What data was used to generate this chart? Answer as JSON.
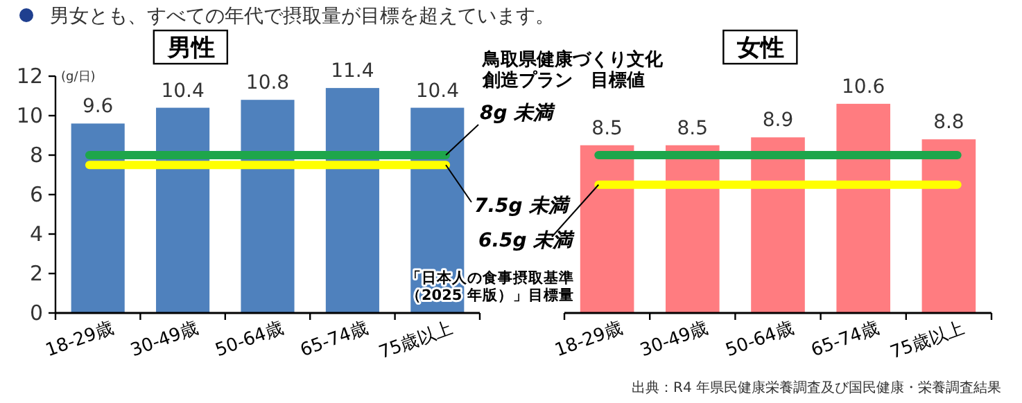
{
  "chart_data": [
    {
      "type": "bar",
      "title": "男女とも、すべての年代で摂取量が目標を超えています。",
      "subtitle": "男性",
      "ylabel": "(g/日)",
      "categories": [
        "18-29歳",
        "30-49歳",
        "50-64歳",
        "65-74歳",
        "75歳以上"
      ],
      "values": [
        9.6,
        10.4,
        10.8,
        11.4,
        10.4
      ],
      "color": "#4f81bd",
      "ylim": [
        0,
        12
      ],
      "yticks": [
        0,
        2,
        4,
        6,
        8,
        10,
        12
      ],
      "data_labels": true,
      "ref_lines": [
        {
          "axis": "y",
          "value": 8,
          "label": "8g 未満",
          "color": "#1ea64b"
        },
        {
          "axis": "y",
          "value": 7.5,
          "label": "7.5g 未満",
          "color": "#ffff00"
        }
      ],
      "annotations": [
        "鳥取県健康づくり文化創造プラン　目標値",
        "「日本人の食事摂取基準（2025 年版）」目標量"
      ]
    },
    {
      "type": "bar",
      "subtitle": "女性",
      "categories": [
        "18-29歳",
        "30-49歳",
        "50-64歳",
        "65-74歳",
        "75歳以上"
      ],
      "values": [
        8.5,
        8.5,
        8.9,
        10.6,
        8.8
      ],
      "color": "#ff7c80",
      "ylim": [
        0,
        12
      ],
      "tick_labels": "x",
      "data_labels": true,
      "ref_lines": [
        {
          "axis": "y",
          "value": 8,
          "color": "#1ea64b"
        },
        {
          "axis": "y",
          "value": 6.5,
          "label": "6.5g 未満",
          "color": "#ffff00"
        }
      ],
      "annotations": [
        "出典：R4 年県民健康栄養調査及び国民健康・栄養調査結果"
      ]
    }
  ]
}
